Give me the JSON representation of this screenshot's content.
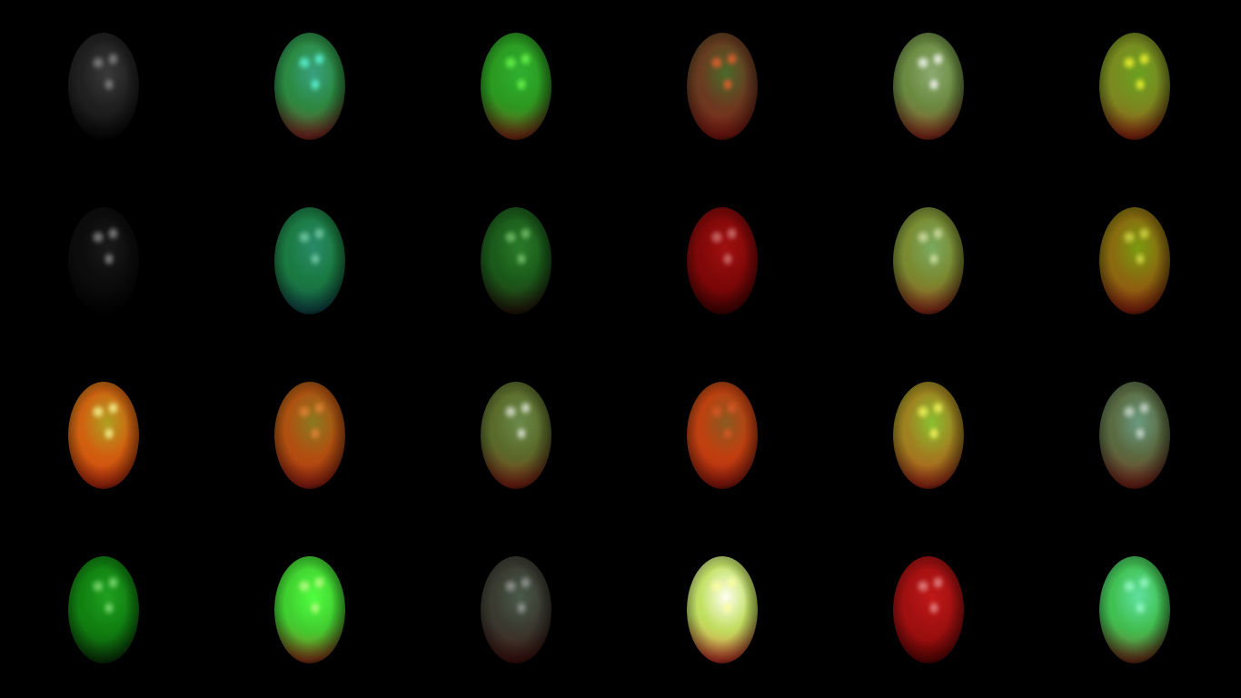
{
  "scene": {
    "background": "#000000",
    "rows": 4,
    "columns": 6,
    "spheres": [
      {
        "top": "#3a3a3a",
        "mid": "#202020",
        "bottom": "#000000",
        "highlight": "#cfcfcf",
        "glow": 0.55
      },
      {
        "top": "#3aa080",
        "mid": "#2a8a40",
        "bottom": "#c01020",
        "highlight": "#60ffe0",
        "glow": 0.95
      },
      {
        "top": "#30b030",
        "mid": "#2a9a20",
        "bottom": "#c01818",
        "highlight": "#70ff50",
        "glow": 0.95
      },
      {
        "top": "#4a6a2a",
        "mid": "#6a3a20",
        "bottom": "#b01010",
        "highlight": "#ff6030",
        "glow": 0.9
      },
      {
        "top": "#8aaa70",
        "mid": "#6a8a40",
        "bottom": "#c01818",
        "highlight": "#ffffff",
        "glow": 0.95
      },
      {
        "top": "#6aa020",
        "mid": "#7a8a20",
        "bottom": "#c01010",
        "highlight": "#ffff30",
        "glow": 0.95
      },
      {
        "top": "#1a1a1a",
        "mid": "#0c0c0c",
        "bottom": "#000000",
        "highlight": "#d8d8d8",
        "glow": 0.6
      },
      {
        "top": "#2a8a6a",
        "mid": "#1a7a40",
        "bottom": "#104a60",
        "highlight": "#b0ffe0",
        "glow": 0.6
      },
      {
        "top": "#2a7a2a",
        "mid": "#1a5a1a",
        "bottom": "#300808",
        "highlight": "#b0ffa0",
        "glow": 0.6
      },
      {
        "top": "#a01010",
        "mid": "#800808",
        "bottom": "#500000",
        "highlight": "#ffc0c0",
        "glow": 0.6
      },
      {
        "top": "#7aaa60",
        "mid": "#7a8a30",
        "bottom": "#c01818",
        "highlight": "#ffffd0",
        "glow": 0.7
      },
      {
        "top": "#7a9a10",
        "mid": "#8a6a10",
        "bottom": "#b01010",
        "highlight": "#ffff60",
        "glow": 0.7
      },
      {
        "top": "#b0a020",
        "mid": "#d06010",
        "bottom": "#e02010",
        "highlight": "#ffffa0",
        "glow": 0.95
      },
      {
        "top": "#8a7a20",
        "mid": "#b05010",
        "bottom": "#c01818",
        "highlight": "#ff9040",
        "glow": 0.75
      },
      {
        "top": "#6a8a4a",
        "mid": "#5a6a2a",
        "bottom": "#b01010",
        "highlight": "#ffffff",
        "glow": 0.8
      },
      {
        "top": "#8a5a20",
        "mid": "#c04010",
        "bottom": "#b01010",
        "highlight": "#ff6030",
        "glow": 0.6
      },
      {
        "top": "#8ac030",
        "mid": "#a08020",
        "bottom": "#d01818",
        "highlight": "#ffff60",
        "glow": 0.95
      },
      {
        "top": "#6a9a80",
        "mid": "#5a6a40",
        "bottom": "#a01010",
        "highlight": "#ffffff",
        "glow": 0.7
      },
      {
        "top": "#20a020",
        "mid": "#108010",
        "bottom": "#0a300a",
        "highlight": "#b0ffa0",
        "glow": 0.7
      },
      {
        "top": "#50ff40",
        "mid": "#40d030",
        "bottom": "#d01818",
        "highlight": "#d0ff90",
        "glow": 0.9
      },
      {
        "top": "#4a5a4a",
        "mid": "#3a3a30",
        "bottom": "#500808",
        "highlight": "#e0e0e0",
        "glow": 0.55
      },
      {
        "top": "#fffff0",
        "mid": "#c0e060",
        "bottom": "#ff1020",
        "highlight": "#ffffa0",
        "glow": 1.0
      },
      {
        "top": "#c01818",
        "mid": "#a01010",
        "bottom": "#700000",
        "highlight": "#ffc0c0",
        "glow": 0.7
      },
      {
        "top": "#60e0a0",
        "mid": "#40c050",
        "bottom": "#a01010",
        "highlight": "#a0ffd0",
        "glow": 0.9
      }
    ]
  }
}
